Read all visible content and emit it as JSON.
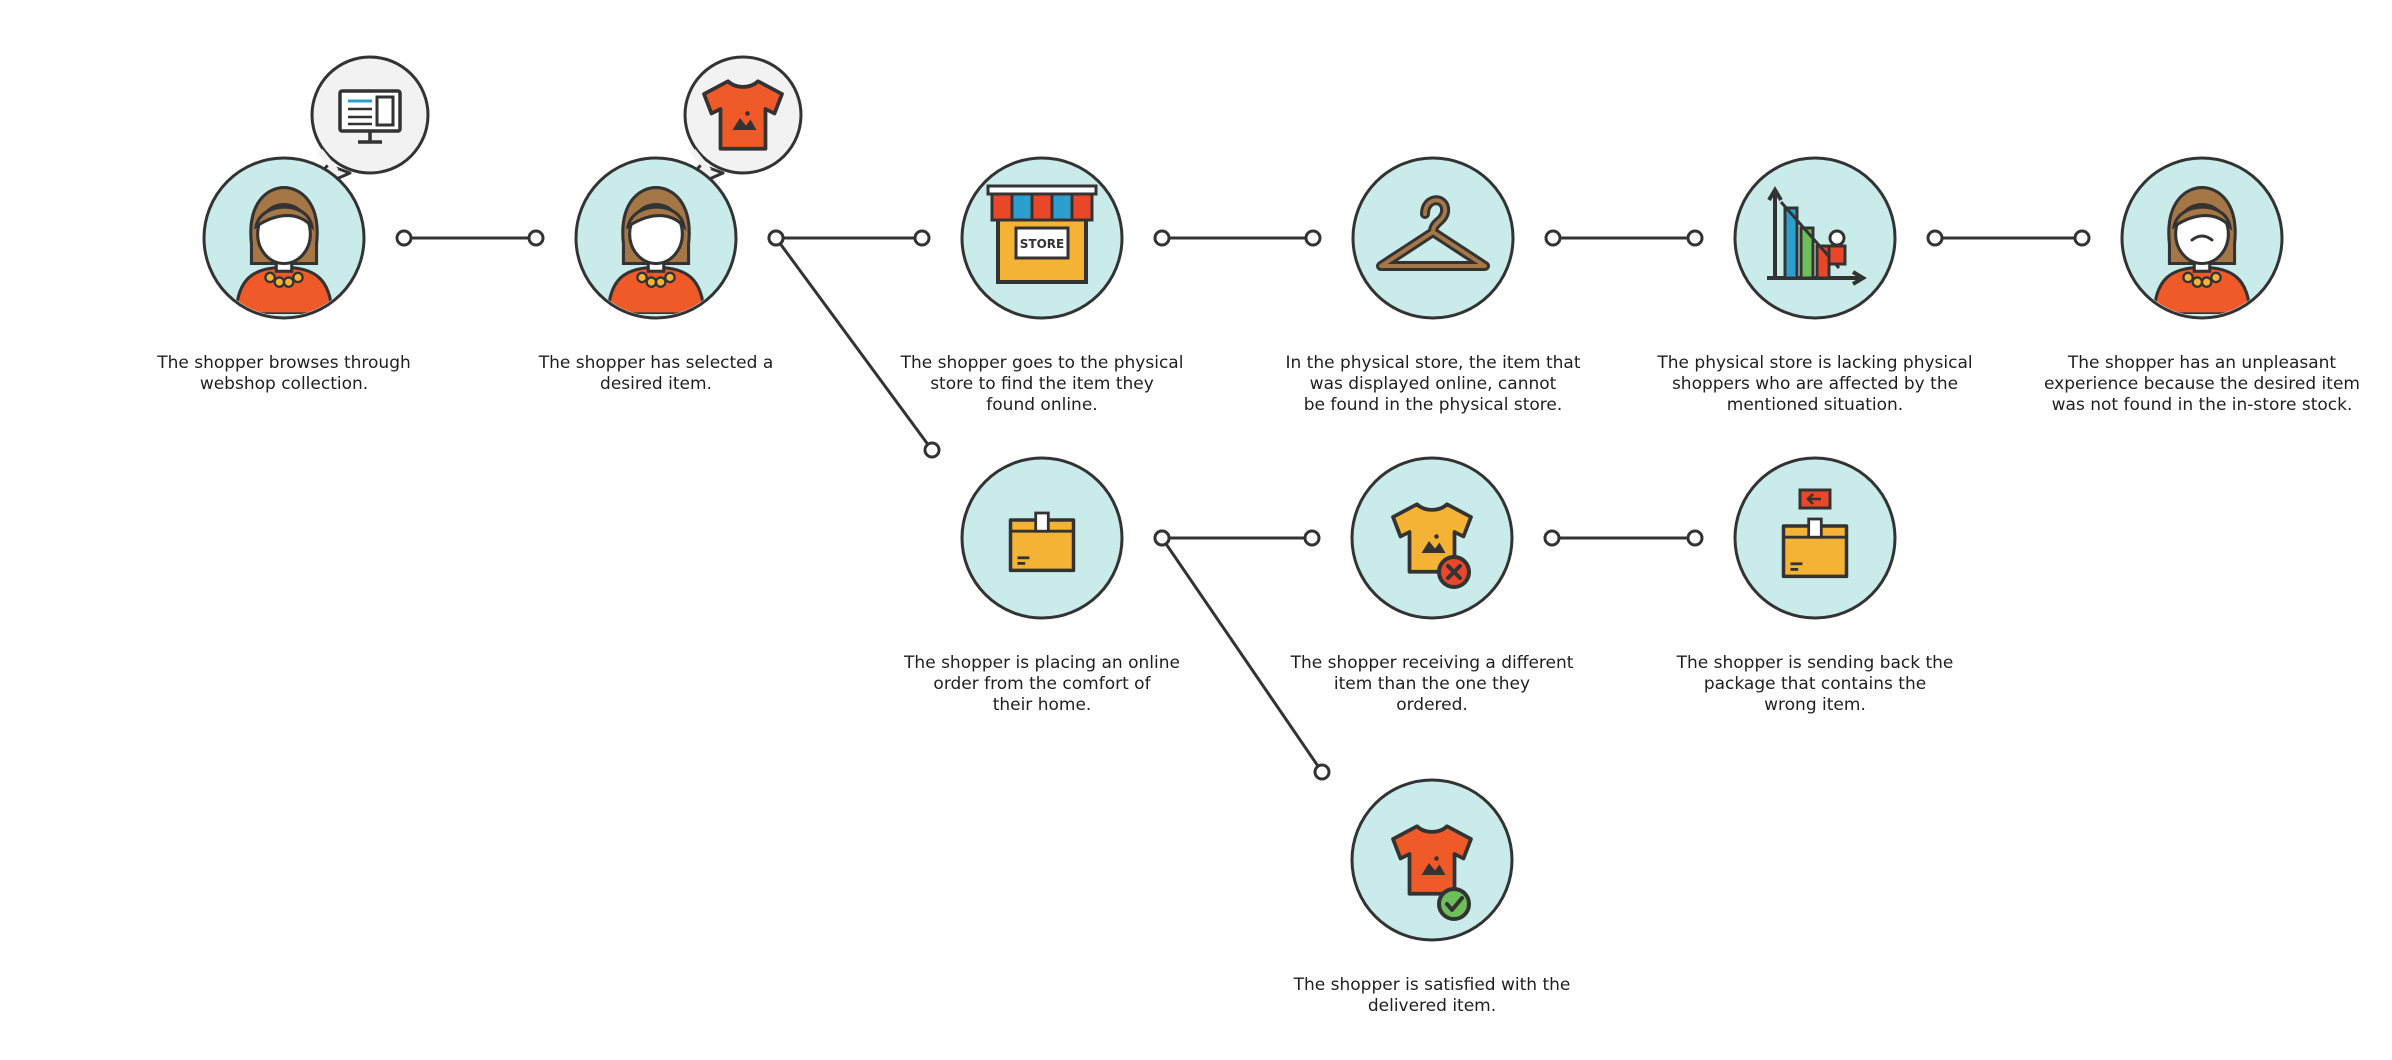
{
  "colors": {
    "line": "#333333",
    "circle_fill": "#c9eceb",
    "bubble_fill": "#f2f2f2",
    "orange": "#f05a28",
    "yellow": "#f5b335",
    "skin": "#ffffff",
    "hair": "#a57746",
    "green": "#6cbf5a",
    "red": "#e8472a",
    "blue": "#2d9fcf",
    "teal": "#3cb7b1"
  },
  "nodes": [
    {
      "id": "browse",
      "icon": "shopper-happy-icon",
      "bubble": "computer-monitor-icon",
      "caption": "The shopper browses through\nwebshop collection."
    },
    {
      "id": "selected",
      "icon": "shopper-happy-icon",
      "bubble": "tshirt-icon",
      "caption": "The shopper has selected a\ndesired item."
    },
    {
      "id": "goes-store",
      "icon": "store-icon",
      "caption": "The shopper goes to the physical\nstore to find the item they\nfound online."
    },
    {
      "id": "not-found",
      "icon": "hanger-icon",
      "caption": "In the physical store, the item that\nwas displayed online, cannot\nbe found in the physical store."
    },
    {
      "id": "lacking",
      "icon": "bar-chart-shoppers-icon",
      "caption": "The physical store is lacking physical\nshoppers who are affected by the\nmentioned situation."
    },
    {
      "id": "unpleasant",
      "icon": "shopper-sad-icon",
      "caption": "The shopper has an unpleasant\nexperience because the desired item\nwas not found in the in-store stock."
    },
    {
      "id": "online-order",
      "icon": "package-box-icon",
      "caption": "The shopper is placing an online\norder from the comfort of\ntheir home."
    },
    {
      "id": "wrong-item",
      "icon": "tshirt-wrong-icon",
      "caption": "The shopper receiving a different\nitem than the one they\nordered."
    },
    {
      "id": "send-back",
      "icon": "package-return-icon",
      "caption": "The shopper is sending back the\npackage that contains the\nwrong item."
    },
    {
      "id": "satisfied",
      "icon": "tshirt-check-icon",
      "caption": "The shopper is satisfied with the\ndelivered item."
    }
  ],
  "edges": [
    [
      "browse",
      "selected"
    ],
    [
      "selected",
      "goes-store"
    ],
    [
      "goes-store",
      "not-found"
    ],
    [
      "not-found",
      "lacking"
    ],
    [
      "lacking",
      "unpleasant"
    ],
    [
      "selected",
      "online-order"
    ],
    [
      "online-order",
      "wrong-item"
    ],
    [
      "wrong-item",
      "send-back"
    ],
    [
      "online-order",
      "satisfied"
    ]
  ]
}
